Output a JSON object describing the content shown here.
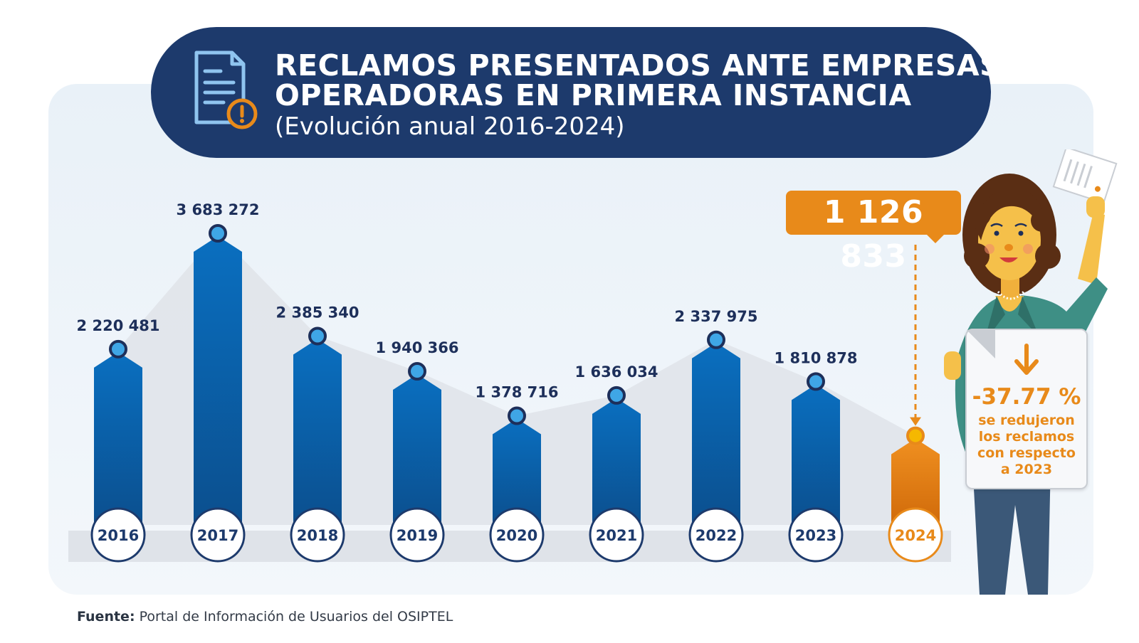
{
  "title": {
    "line1": "RECLAMOS PRESENTADOS ANTE EMPRESAS",
    "line2": "OPERADORAS EN PRIMERA INSTANCIA",
    "subtitle": "(Evolución anual 2016-2024)"
  },
  "colors": {
    "navy": "#1d3a6c",
    "bar_blue": "#0a66b2",
    "highlight_orange": "#e88a1a",
    "label_dark": "#1d2f5a"
  },
  "chart_data": {
    "type": "bar",
    "categories": [
      "2016",
      "2017",
      "2018",
      "2019",
      "2020",
      "2021",
      "2022",
      "2023",
      "2024"
    ],
    "values": [
      2220481,
      3683272,
      2385340,
      1940366,
      1378716,
      1636034,
      2337975,
      1810878,
      1126833
    ],
    "value_labels": [
      "2 220 481",
      "3 683 272",
      "2 385 340",
      "1 940 366",
      "1 378 716",
      "1 636 034",
      "2 337 975",
      "1 810 878",
      "1 126 833"
    ],
    "highlight_category": "2024",
    "grid": false,
    "legend": "none"
  },
  "callout": {
    "value": "1 126 833"
  },
  "note": {
    "icon": "arrow-down-icon",
    "percent": "-37.77 %",
    "line1": "se redujeron",
    "line2": "los reclamos",
    "line3": "con respecto",
    "line4": "a 2023"
  },
  "source": {
    "label": "Fuente:",
    "text": "Portal de Información de Usuarios del OSIPTEL"
  }
}
